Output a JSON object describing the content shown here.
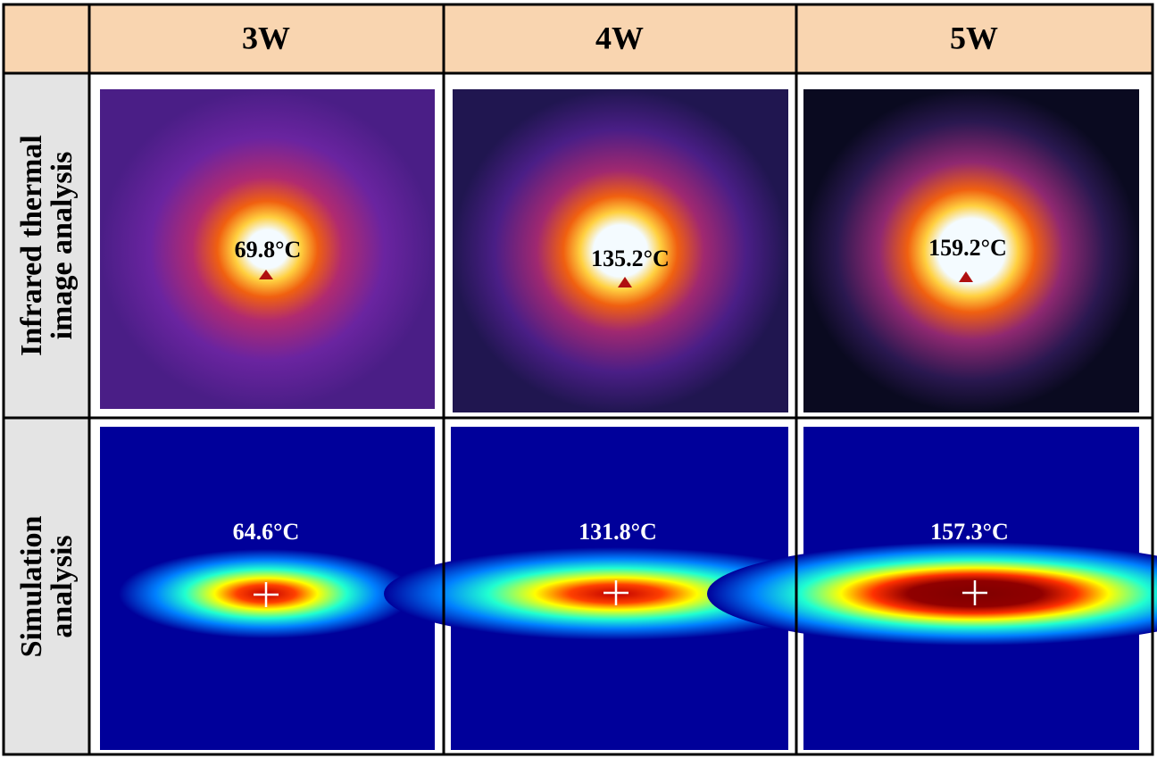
{
  "table": {
    "columns": [
      "3W",
      "4W",
      "5W"
    ],
    "rows": [
      {
        "label": [
          "Infrared thermal",
          "image analysis"
        ],
        "temps": [
          "69.8°C",
          "135.2°C",
          "159.2°C"
        ]
      },
      {
        "label": [
          "Simulation",
          "analysis"
        ],
        "temps": [
          "64.6°C",
          "131.8°C",
          "157.3°C"
        ]
      }
    ]
  }
}
